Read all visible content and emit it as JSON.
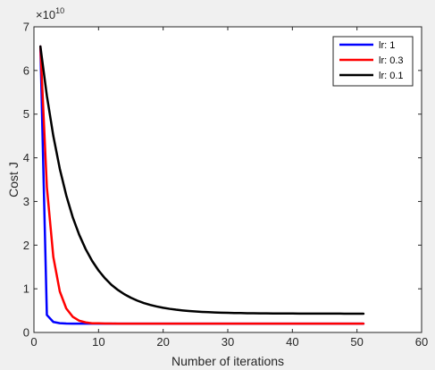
{
  "chart_data": {
    "type": "line",
    "title": "",
    "xlabel": "Number of iterations",
    "ylabel": "Cost J",
    "xlim": [
      0,
      60
    ],
    "ylim": [
      0,
      7
    ],
    "x_ticks": [
      "0",
      "10",
      "20",
      "30",
      "40",
      "50",
      "60"
    ],
    "y_ticks": [
      "0",
      "1",
      "2",
      "3",
      "4",
      "5",
      "6",
      "7"
    ],
    "y_exponent_base": "×10",
    "y_exponent_power": "10",
    "y_scale_note": "y values in units of 10^10",
    "grid": false,
    "legend_position": "top-right",
    "x": [
      1,
      2,
      3,
      4,
      5,
      6,
      7,
      8,
      9,
      10,
      11,
      12,
      13,
      14,
      15,
      16,
      17,
      18,
      19,
      20,
      21,
      22,
      23,
      24,
      25,
      26,
      27,
      28,
      29,
      30,
      31,
      32,
      33,
      34,
      35,
      36,
      37,
      38,
      39,
      40,
      41,
      42,
      43,
      44,
      45,
      46,
      47,
      48,
      49,
      50,
      51
    ],
    "series": [
      {
        "name": "lr: 1",
        "color": "#0000ff",
        "values": [
          6.55,
          0.4,
          0.24,
          0.212,
          0.205,
          0.2025,
          0.2025,
          0.2025,
          0.2025,
          0.2025,
          0.2025,
          0.2025,
          0.2025,
          0.2025,
          0.2025,
          0.2025,
          0.2025,
          0.2025,
          0.2025,
          0.2025,
          0.2025,
          0.2025,
          0.2025,
          0.2025,
          0.2025,
          0.2025,
          0.2025,
          0.2025,
          0.2025,
          0.2025,
          0.2025,
          0.2025,
          0.2025,
          0.2025,
          0.2025,
          0.2025,
          0.2025,
          0.2025,
          0.2025,
          0.2025,
          0.2025,
          0.2025,
          0.2025,
          0.2025,
          0.2025,
          0.2025,
          0.2025,
          0.2025,
          0.2025,
          0.2025,
          0.2025
        ]
      },
      {
        "name": "lr: 0.3",
        "color": "#ff0000",
        "values": [
          6.55,
          3.33,
          1.73,
          0.94,
          0.55,
          0.36,
          0.27,
          0.23,
          0.21,
          0.2085,
          0.2053,
          0.2037,
          0.203,
          0.2027,
          0.2026,
          0.2025,
          0.2025,
          0.2025,
          0.2025,
          0.2025,
          0.2025,
          0.2025,
          0.2025,
          0.2025,
          0.2025,
          0.2025,
          0.2025,
          0.2025,
          0.2025,
          0.2025,
          0.2025,
          0.2025,
          0.2025,
          0.2025,
          0.2025,
          0.2025,
          0.2025,
          0.2025,
          0.2025,
          0.2025,
          0.2025,
          0.2025,
          0.2025,
          0.2025,
          0.2025,
          0.2025,
          0.2025,
          0.2025,
          0.2025,
          0.2025,
          0.2025
        ]
      },
      {
        "name": "lr: 0.1",
        "color": "#000000",
        "values": [
          6.55,
          5.42,
          4.5,
          3.75,
          3.14,
          2.64,
          2.24,
          1.91,
          1.64,
          1.42,
          1.24,
          1.09,
          0.973,
          0.875,
          0.795,
          0.729,
          0.675,
          0.631,
          0.595,
          0.565,
          0.541,
          0.521,
          0.505,
          0.492,
          0.481,
          0.472,
          0.465,
          0.459,
          0.454,
          0.45,
          0.446,
          0.444,
          0.441,
          0.439,
          0.438,
          0.437,
          0.436,
          0.435,
          0.434,
          0.434,
          0.433,
          0.433,
          0.432,
          0.432,
          0.432,
          0.432,
          0.432,
          0.431,
          0.431,
          0.431,
          0.431
        ]
      }
    ]
  }
}
